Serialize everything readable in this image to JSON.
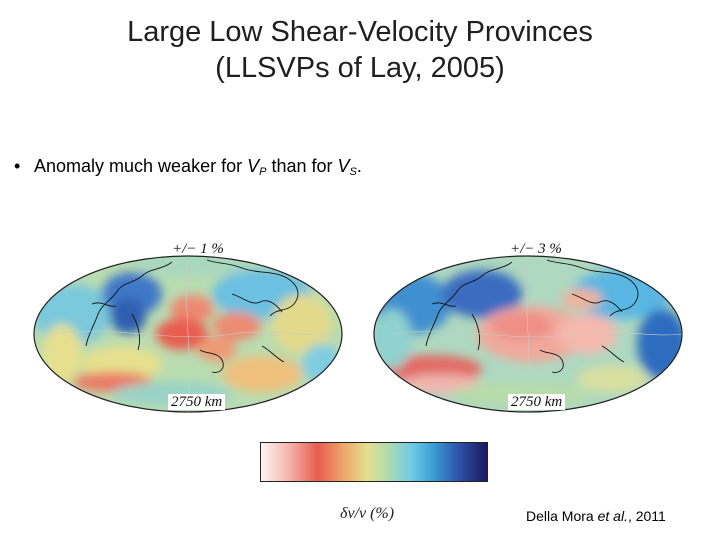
{
  "slide": {
    "title_line1": "Large Low Shear-Velocity Provinces",
    "title_line2": "(LLSVPs of Lay, 2005)",
    "bullet": {
      "marker": "•",
      "text_before": "Anomaly much weaker for ",
      "vp_base": "V",
      "vp_sub": "P",
      "text_middle": " than for ",
      "vs_base": "V",
      "vs_sub": "S",
      "text_end": "."
    },
    "maps": [
      {
        "range_label": "+/− 1 %",
        "depth_label": "2750 km"
      },
      {
        "range_label": "+/− 3 %",
        "depth_label": "2750 km"
      }
    ],
    "colorbar": {
      "label": "δv/v (%)",
      "colors": [
        "#fbf4f2",
        "#f6b7ae",
        "#e85d50",
        "#eea46a",
        "#e4df8f",
        "#b7dbaa",
        "#73cde2",
        "#3a9fd6",
        "#2d4fa8",
        "#1a1a5c"
      ]
    },
    "citation": {
      "author": "Della Mora ",
      "etal": "et al.",
      "year": ", 2011"
    }
  }
}
